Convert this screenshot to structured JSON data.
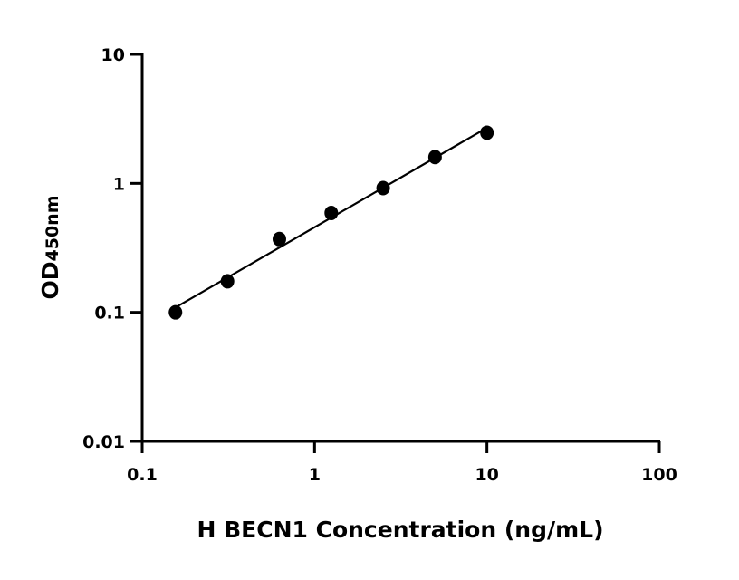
{
  "chart_data": {
    "type": "scatter",
    "title": "",
    "xlabel": "H BECN1 Concentration (ng/mL)",
    "ylabel_main": "OD",
    "ylabel_sub": "450nm",
    "x_scale": "log",
    "y_scale": "log",
    "xlim": [
      0.1,
      100
    ],
    "ylim": [
      0.01,
      10
    ],
    "x_ticks": [
      0.1,
      1,
      10,
      100
    ],
    "x_tick_labels": [
      "0.1",
      "1",
      "10",
      "100"
    ],
    "y_ticks": [
      0.01,
      0.1,
      1,
      10
    ],
    "y_tick_labels": [
      "0.01",
      "0.1",
      "1",
      "10"
    ],
    "grid": false,
    "legend": "none",
    "fit_line": true,
    "color": "#000000",
    "series": [
      {
        "x": [
          0.156,
          0.3125,
          0.625,
          1.25,
          2.5,
          5,
          10
        ],
        "y": [
          0.1,
          0.174,
          0.37,
          0.59,
          0.92,
          1.6,
          2.47
        ]
      }
    ]
  }
}
